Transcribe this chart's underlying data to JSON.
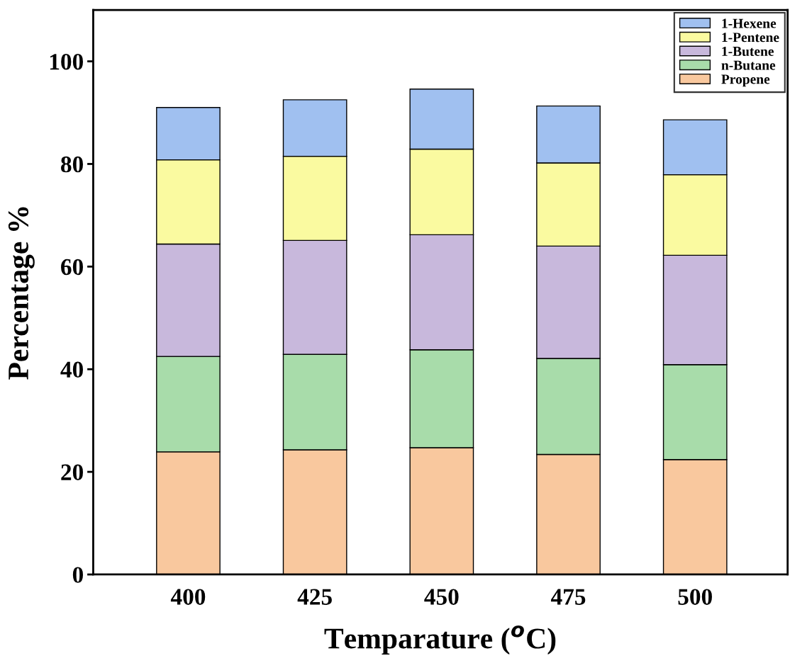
{
  "chart_data": {
    "type": "bar",
    "stacked": true,
    "xlabel": "Temparature ($^{o}$C)",
    "ylabel": "Percentage %",
    "categories": [
      "400",
      "425",
      "450",
      "475",
      "500"
    ],
    "series": [
      {
        "name": "Propene",
        "color": "#f9c89e",
        "values": [
          23.9,
          24.3,
          24.7,
          23.4,
          22.4
        ]
      },
      {
        "name": "n-Butane",
        "color": "#a8dcaa",
        "values": [
          18.6,
          18.6,
          19.1,
          18.7,
          18.5
        ]
      },
      {
        "name": "1-Butene",
        "color": "#c8b8dc",
        "values": [
          21.9,
          22.2,
          22.4,
          21.9,
          21.3
        ]
      },
      {
        "name": "1-Pentene",
        "color": "#fafaa0",
        "values": [
          16.4,
          16.4,
          16.7,
          16.2,
          15.7
        ]
      },
      {
        "name": "1-Hexene",
        "color": "#a0c0f0",
        "values": [
          10.2,
          11.0,
          11.7,
          11.1,
          10.7
        ]
      }
    ],
    "ylim": [
      0,
      110
    ],
    "yticks": [
      0,
      20,
      40,
      60,
      80,
      100
    ],
    "legend": "top right",
    "grid": false
  }
}
